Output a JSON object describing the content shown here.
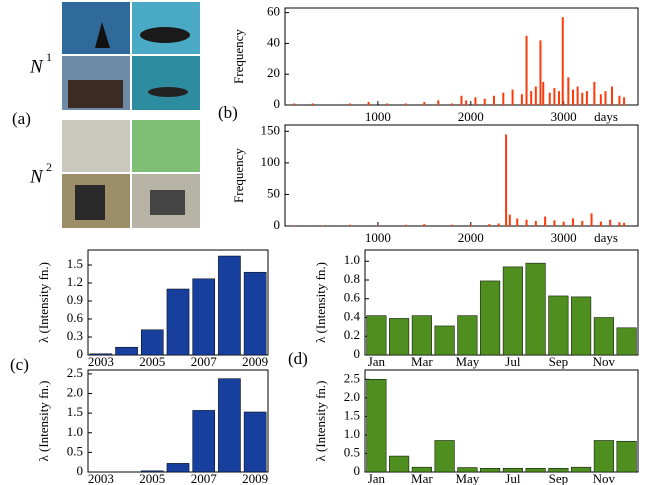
{
  "panel_a": {
    "label": "(a)",
    "groups": [
      {
        "name": "N",
        "sup": "1"
      },
      {
        "name": "N",
        "sup": "2"
      }
    ]
  },
  "panel_labels": {
    "b": "(b)",
    "c": "(c)",
    "d": "(d)"
  },
  "chart_data": [
    {
      "type": "bar",
      "y_label": "Frequency",
      "x_label": "days",
      "color": "#ff3a0a",
      "x": [
        100,
        300,
        500,
        700,
        900,
        1100,
        1300,
        1500,
        1650,
        1800,
        1900,
        1950,
        2050,
        2150,
        2250,
        2350,
        2450,
        2550,
        2600,
        2650,
        2700,
        2750,
        2780,
        2850,
        2900,
        2950,
        2990,
        3050,
        3100,
        3150,
        3200,
        3250,
        3330,
        3400,
        3450,
        3520,
        3600,
        3650
      ],
      "values": [
        1,
        1,
        0,
        1,
        2,
        1,
        1,
        2,
        3,
        1,
        6,
        3,
        5,
        4,
        6,
        8,
        10,
        7,
        45,
        9,
        12,
        42,
        15,
        8,
        11,
        9,
        57,
        18,
        10,
        12,
        8,
        9,
        15,
        7,
        9,
        12,
        6,
        5
      ],
      "xlim": [
        0,
        3800
      ],
      "xticks": [
        1000,
        2000,
        3000
      ],
      "ylim": [
        0,
        63
      ],
      "yticks": [
        0,
        20,
        40,
        60
      ]
    },
    {
      "type": "bar",
      "y_label": "Frequency",
      "x_label": "days",
      "color": "#ff3a0a",
      "x": [
        100,
        400,
        700,
        1000,
        1300,
        1500,
        1800,
        2000,
        2200,
        2300,
        2380,
        2420,
        2500,
        2600,
        2700,
        2800,
        2900,
        3000,
        3100,
        3200,
        3300,
        3400,
        3500,
        3600,
        3650
      ],
      "values": [
        1,
        1,
        2,
        1,
        2,
        3,
        2,
        2,
        3,
        4,
        145,
        18,
        12,
        10,
        8,
        15,
        9,
        7,
        12,
        8,
        20,
        7,
        10,
        6,
        5
      ],
      "xlim": [
        0,
        3800
      ],
      "xticks": [
        1000,
        2000,
        3000
      ],
      "ylim": [
        0,
        160
      ],
      "yticks": [
        0,
        50,
        100,
        150
      ]
    },
    {
      "type": "bar",
      "y_label": "λ (Intensity fn.)",
      "color": "#173f9e",
      "categories": [
        "2003",
        null,
        "2005",
        null,
        "2007",
        null,
        "2009"
      ],
      "values": [
        0.02,
        0.13,
        0.42,
        1.1,
        1.27,
        1.65,
        1.38
      ],
      "ylim": [
        0,
        1.75
      ],
      "yticks": [
        0,
        0.3,
        0.6,
        0.9,
        1.2,
        1.5
      ]
    },
    {
      "type": "bar",
      "y_label": "λ (Intensity fn.)",
      "color": "#173f9e",
      "categories": [
        "2003",
        null,
        "2005",
        null,
        "2007",
        null,
        "2009"
      ],
      "values": [
        0,
        0,
        0.03,
        0.22,
        1.57,
        2.38,
        1.53
      ],
      "ylim": [
        0,
        2.6
      ],
      "yticks": [
        0,
        0.5,
        {
          "value": 1,
          "label": "1.0"
        },
        1.5,
        {
          "value": 2,
          "label": "2.0"
        },
        2.5
      ]
    },
    {
      "type": "bar",
      "y_label": "λ (Intensity fn.)",
      "color": "#4e8f1f",
      "categories": [
        "Jan",
        null,
        "Mar",
        null,
        "May",
        null,
        "Jul",
        null,
        "Sep",
        null,
        "Nov",
        null
      ],
      "values": [
        0.42,
        0.39,
        0.42,
        0.31,
        0.42,
        0.79,
        0.94,
        0.98,
        0.63,
        0.62,
        0.4,
        0.29
      ],
      "ylim": [
        0,
        1.12
      ],
      "yticks": [
        0,
        0.2,
        0.4,
        0.6,
        0.8,
        {
          "value": 1,
          "label": "1.0"
        }
      ]
    },
    {
      "type": "bar",
      "y_label": "λ (Intensity fn.)",
      "color": "#4e8f1f",
      "categories": [
        "Jan",
        null,
        "Mar",
        null,
        "May",
        null,
        "Jul",
        null,
        "Sep",
        null,
        "Nov",
        null
      ],
      "values": [
        2.5,
        0.43,
        0.13,
        0.85,
        0.12,
        0.1,
        0.1,
        0.1,
        0.1,
        0.13,
        0.85,
        0.83
      ],
      "ylim": [
        0,
        2.75
      ],
      "yticks": [
        0,
        0.5,
        {
          "value": 1,
          "label": "1.0"
        },
        1.5,
        {
          "value": 2,
          "label": "2.0"
        },
        2.5
      ]
    }
  ]
}
